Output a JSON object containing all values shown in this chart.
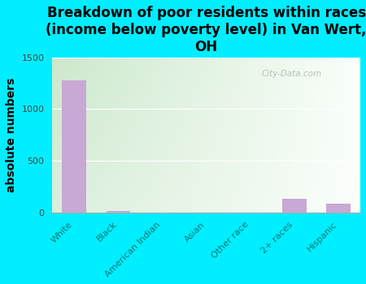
{
  "title": "Breakdown of poor residents within races\n(income below poverty level) in Van Wert,\nOH",
  "ylabel": "absolute numbers",
  "categories": [
    "White",
    "Black",
    "American Indian",
    "Asian",
    "Other race",
    "2+ races",
    "Hispanic"
  ],
  "values": [
    1280,
    10,
    0,
    0,
    0,
    130,
    80
  ],
  "bar_color": "#c9a8d4",
  "ylim": [
    0,
    1500
  ],
  "yticks": [
    0,
    500,
    1000,
    1500
  ],
  "background_outer": "#00eeff",
  "grad_left": "#cce8cc",
  "grad_right": "#f0f8f0",
  "title_fontsize": 12,
  "ylabel_fontsize": 10,
  "tick_label_fontsize": 8,
  "tick_label_color": "#007777",
  "ytick_color": "#444444",
  "watermark": "City-Data.com"
}
